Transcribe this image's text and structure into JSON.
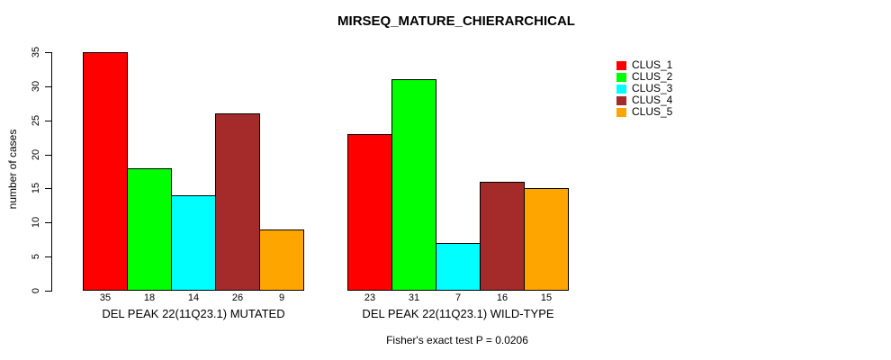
{
  "chart_data": {
    "type": "bar",
    "title": "MIRSEQ_MATURE_CHIERARCHICAL",
    "ylabel": "number of cases",
    "xlabel": "",
    "ylim": [
      0,
      35
    ],
    "yticks": [
      0,
      5,
      10,
      15,
      20,
      25,
      30,
      35
    ],
    "grid": false,
    "legend_position": "right",
    "series": [
      {
        "name": "CLUS_1",
        "color": "#FF0000"
      },
      {
        "name": "CLUS_2",
        "color": "#00FF00"
      },
      {
        "name": "CLUS_3",
        "color": "#00FFFF"
      },
      {
        "name": "CLUS_4",
        "color": "#A52A2A"
      },
      {
        "name": "CLUS_5",
        "color": "#FFA500"
      }
    ],
    "groups": [
      {
        "label": "DEL PEAK 22(11Q23.1) MUTATED",
        "values": [
          35,
          18,
          14,
          26,
          9
        ]
      },
      {
        "label": "DEL PEAK 22(11Q23.1) WILD-TYPE",
        "values": [
          23,
          31,
          7,
          16,
          15
        ]
      }
    ],
    "annotation": "Fisher's exact test P = 0.0206"
  }
}
